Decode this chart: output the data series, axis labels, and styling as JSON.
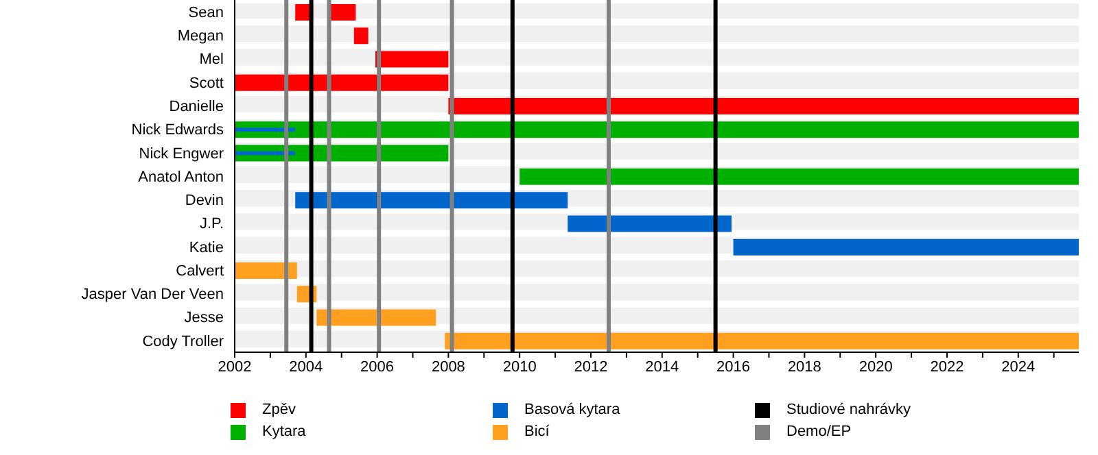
{
  "chart_data": {
    "type": "bar",
    "orientation": "horizontal",
    "categories": [
      "Sean",
      "Megan",
      "Mel",
      "Scott",
      "Danielle",
      "Nick Edwards",
      "Nick Engwer",
      "Anatol Anton",
      "Devin",
      "J.P.",
      "Katie",
      "Calvert",
      "Jasper Van Der Veen",
      "Jesse",
      "Cody Troller"
    ],
    "series": [
      {
        "name": "Zpěv",
        "color": "#ff0000",
        "base": [
          2003.7,
          2005.35,
          2005.95,
          2002,
          2008.0,
          null,
          null,
          null,
          null,
          null,
          null,
          null,
          null,
          null,
          null
        ],
        "values": [
          0.5,
          0.4,
          2.05,
          6,
          17.7,
          null,
          null,
          null,
          null,
          null,
          null,
          null,
          null,
          null,
          null
        ]
      },
      {
        "name": "Kytara",
        "color": "#00b000",
        "base": [
          null,
          null,
          null,
          null,
          null,
          2002,
          2002,
          2010,
          null,
          null,
          null,
          null,
          null,
          null,
          null
        ],
        "values": [
          null,
          null,
          null,
          null,
          null,
          23.7,
          6,
          15.7,
          null,
          null,
          null,
          null,
          null,
          null,
          null
        ]
      },
      {
        "name": "Basová kytara",
        "color": "#0066cc",
        "base": [
          null,
          null,
          null,
          null,
          null,
          null,
          null,
          null,
          2003.7,
          2011.35,
          2016,
          null,
          null,
          null,
          null
        ],
        "values": [
          null,
          null,
          null,
          null,
          null,
          null,
          null,
          null,
          7.65,
          4.6,
          9.7,
          null,
          null,
          null,
          null
        ]
      },
      {
        "name": "Bicí",
        "color": "#ffa020",
        "base": [
          null,
          null,
          null,
          null,
          null,
          null,
          null,
          null,
          null,
          null,
          null,
          2002,
          2003.75,
          2004.3,
          2007.9
        ],
        "values": [
          null,
          null,
          null,
          null,
          null,
          null,
          null,
          null,
          null,
          null,
          null,
          1.75,
          0.55,
          3.35,
          17.8
        ]
      },
      {
        "color": "#ff0000",
        "base": [
          2004.7,
          null,
          null,
          null,
          null,
          null,
          null,
          null,
          null,
          null,
          null,
          null,
          null,
          null,
          null
        ],
        "values": [
          0.7,
          null,
          null,
          null,
          null,
          null,
          null,
          null,
          null,
          null,
          null,
          null,
          null,
          null,
          null
        ]
      },
      {
        "color": "#0066cc",
        "base": [
          null,
          null,
          null,
          null,
          null,
          2002,
          2002,
          null,
          null,
          null,
          null,
          null,
          null,
          null,
          null
        ],
        "values": [
          null,
          null,
          null,
          null,
          null,
          1.7,
          1.7,
          null,
          null,
          null,
          null,
          null,
          null,
          null,
          null
        ]
      }
    ],
    "xlim": [
      2002,
      2025.7
    ],
    "xticks": [
      2002,
      {
        "value": 2003,
        "label": null
      },
      2004,
      {
        "value": 2005,
        "label": null
      },
      2006,
      {
        "value": 2007,
        "label": null
      },
      2008,
      {
        "value": 2009,
        "label": null
      },
      2010,
      {
        "value": 2011,
        "label": null
      },
      2012,
      {
        "value": 2013,
        "label": null
      },
      2014,
      {
        "value": 2015,
        "label": null
      },
      2016,
      {
        "value": 2017,
        "label": null
      },
      2018,
      {
        "value": 2019,
        "label": null
      },
      2020,
      {
        "value": 2021,
        "label": null
      },
      2022,
      {
        "value": 2023,
        "label": null
      },
      2024,
      {
        "value": 2025,
        "label": null
      }
    ],
    "ref_lines": [
      {
        "axis": "x",
        "value": 2004.15,
        "label": "Studiové nahrávky",
        "color": "#000000"
      },
      {
        "axis": "x",
        "value": 2009.8,
        "color": "#000000"
      },
      {
        "axis": "x",
        "value": 2015.5,
        "color": "#000000"
      },
      {
        "axis": "x",
        "value": 2003.45,
        "label": "Demo/EP",
        "color": "#808080"
      },
      {
        "axis": "x",
        "value": 2004.65,
        "color": "#808080"
      },
      {
        "axis": "x",
        "value": 2006.05,
        "color": "#808080"
      },
      {
        "axis": "x",
        "value": 2008.1,
        "color": "#808080"
      },
      {
        "axis": "x",
        "value": 2012.5,
        "color": "#808080"
      }
    ],
    "grid": "y",
    "legend": "bottom"
  }
}
